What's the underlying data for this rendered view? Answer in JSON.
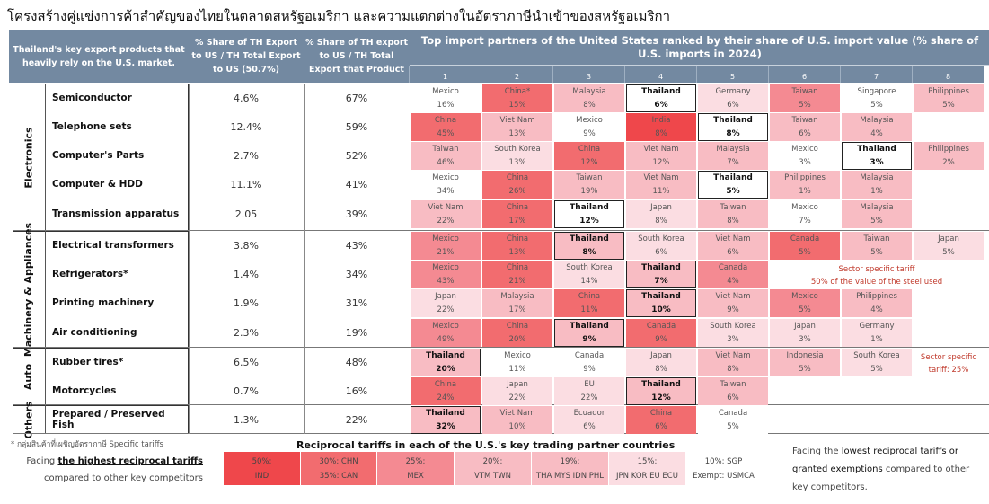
{
  "title": "โครงสร้างคู่แข่งการค้าสำคัญของไทยในตลาดสหรัฐอเมริกา และความแตกต่างในอัตราภาษีนำเข้าของสหรัฐอเมริกา",
  "headers": {
    "product": "Thailand's key export products that heavily rely on the U.S. market.",
    "share_us": "% Share of TH Export to US / TH Total Export to US (50.7%)",
    "share_product": "% Share of TH export to US / TH Total Export that Product",
    "partners": "Top import partners of the United States ranked by their share of U.S. import value (% share of U.S. imports in 2024)",
    "ranks": [
      "1",
      "2",
      "3",
      "4",
      "5",
      "6",
      "7",
      "8"
    ]
  },
  "groups": [
    {
      "label": "Electronics"
    },
    {
      "label": "Machinery & Appliances"
    },
    {
      "label": "Auto"
    },
    {
      "label": "Others"
    }
  ],
  "rows": [
    {
      "product": "Semiconductor",
      "share_us": "4.6%",
      "share_product": "67%",
      "partners": [
        {
          "name": "Mexico",
          "pct": "16%",
          "color": "#ffffff"
        },
        {
          "name": "China*",
          "pct": "15%",
          "color": "#f26c6f"
        },
        {
          "name": "Malaysia",
          "pct": "8%",
          "color": "#f8bcc3"
        },
        {
          "name": "Thailand",
          "pct": "6%",
          "color": "#ffffff"
        },
        {
          "name": "Germany",
          "pct": "6%",
          "color": "#fbdde2"
        },
        {
          "name": "Taiwan",
          "pct": "5%",
          "color": "#f48a92"
        },
        {
          "name": "Singapore",
          "pct": "5%",
          "color": "#ffffff"
        },
        {
          "name": "Philippines",
          "pct": "5%",
          "color": "#f8bcc3"
        }
      ]
    },
    {
      "product": "Telephone sets",
      "share_us": "12.4%",
      "share_product": "59%",
      "partners": [
        {
          "name": "China",
          "pct": "45%",
          "color": "#f26c6f"
        },
        {
          "name": "Viet Nam",
          "pct": "13%",
          "color": "#f8bcc3"
        },
        {
          "name": "Mexico",
          "pct": "9%",
          "color": "#ffffff"
        },
        {
          "name": "India",
          "pct": "8%",
          "color": "#ef474b"
        },
        {
          "name": "Thailand",
          "pct": "8%",
          "color": "#ffffff"
        },
        {
          "name": "Taiwan",
          "pct": "6%",
          "color": "#f8bcc3"
        },
        {
          "name": "Malaysia",
          "pct": "4%",
          "color": "#f8bcc3"
        }
      ]
    },
    {
      "product": "Computer's Parts",
      "share_us": "2.7%",
      "share_product": "52%",
      "partners": [
        {
          "name": "Taiwan",
          "pct": "46%",
          "color": "#f8bcc3"
        },
        {
          "name": "South Korea",
          "pct": "13%",
          "color": "#fbdde2"
        },
        {
          "name": "China",
          "pct": "12%",
          "color": "#f26c6f"
        },
        {
          "name": "Viet Nam",
          "pct": "12%",
          "color": "#f8bcc3"
        },
        {
          "name": "Malaysia",
          "pct": "7%",
          "color": "#f8bcc3"
        },
        {
          "name": "Mexico",
          "pct": "3%",
          "color": "#ffffff"
        },
        {
          "name": "Thailand",
          "pct": "3%",
          "color": "#ffffff"
        },
        {
          "name": "Philippines",
          "pct": "2%",
          "color": "#f8bcc3"
        }
      ]
    },
    {
      "product": "Computer & HDD",
      "share_us": "11.1%",
      "share_product": "41%",
      "partners": [
        {
          "name": "Mexico",
          "pct": "34%",
          "color": "#ffffff"
        },
        {
          "name": "China",
          "pct": "26%",
          "color": "#f26c6f"
        },
        {
          "name": "Taiwan",
          "pct": "19%",
          "color": "#f8bcc3"
        },
        {
          "name": "Viet Nam",
          "pct": "11%",
          "color": "#f8bcc3"
        },
        {
          "name": "Thailand",
          "pct": "5%",
          "color": "#ffffff"
        },
        {
          "name": "Philippines",
          "pct": "1%",
          "color": "#f8bcc3"
        },
        {
          "name": "Malaysia",
          "pct": "1%",
          "color": "#f8bcc3"
        }
      ]
    },
    {
      "product": "Transmission apparatus",
      "share_us": "2.05",
      "share_product": "39%",
      "partners": [
        {
          "name": "Viet Nam",
          "pct": "22%",
          "color": "#f8bcc3"
        },
        {
          "name": "China",
          "pct": "17%",
          "color": "#f26c6f"
        },
        {
          "name": "Thailand",
          "pct": "12%",
          "color": "#ffffff"
        },
        {
          "name": "Japan",
          "pct": "8%",
          "color": "#fbdde2"
        },
        {
          "name": "Taiwan",
          "pct": "8%",
          "color": "#f8bcc3"
        },
        {
          "name": "Mexico",
          "pct": "7%",
          "color": "#ffffff"
        },
        {
          "name": "Malaysia",
          "pct": "5%",
          "color": "#f8bcc3"
        }
      ]
    },
    {
      "product": "Electrical transformers",
      "share_us": "3.8%",
      "share_product": "43%",
      "partners": [
        {
          "name": "Mexico",
          "pct": "21%",
          "color": "#f48a92"
        },
        {
          "name": "China",
          "pct": "13%",
          "color": "#f26c6f"
        },
        {
          "name": "Thailand",
          "pct": "8%",
          "color": "#f8bcc3"
        },
        {
          "name": "South Korea",
          "pct": "6%",
          "color": "#fbdde2"
        },
        {
          "name": "Viet Nam",
          "pct": "6%",
          "color": "#f8bcc3"
        },
        {
          "name": "Canada",
          "pct": "5%",
          "color": "#f26c6f"
        },
        {
          "name": "Taiwan",
          "pct": "5%",
          "color": "#f8bcc3"
        },
        {
          "name": "Japan",
          "pct": "5%",
          "color": "#fbdde2"
        }
      ]
    },
    {
      "product": "Refrigerators*",
      "share_us": "1.4%",
      "share_product": "34%",
      "partners": [
        {
          "name": "Mexico",
          "pct": "43%",
          "color": "#f48a92"
        },
        {
          "name": "China",
          "pct": "21%",
          "color": "#f26c6f"
        },
        {
          "name": "South Korea",
          "pct": "14%",
          "color": "#fbdde2"
        },
        {
          "name": "Thailand",
          "pct": "7%",
          "color": "#f8bcc3"
        },
        {
          "name": "Canada",
          "pct": "4%",
          "color": "#f48a92"
        }
      ],
      "note": "Sector specific tariff\n50% of the value of the steel used"
    },
    {
      "product": "Printing machinery",
      "share_us": "1.9%",
      "share_product": "31%",
      "partners": [
        {
          "name": "Japan",
          "pct": "22%",
          "color": "#fbdde2"
        },
        {
          "name": "Malaysia",
          "pct": "17%",
          "color": "#f8bcc3"
        },
        {
          "name": "China",
          "pct": "11%",
          "color": "#f26c6f"
        },
        {
          "name": "Thailand",
          "pct": "10%",
          "color": "#f8bcc3"
        },
        {
          "name": "Viet Nam",
          "pct": "9%",
          "color": "#f8bcc3"
        },
        {
          "name": "Mexico",
          "pct": "5%",
          "color": "#f48a92"
        },
        {
          "name": "Philippines",
          "pct": "4%",
          "color": "#f8bcc3"
        }
      ]
    },
    {
      "product": "Air conditioning",
      "share_us": "2.3%",
      "share_product": "19%",
      "partners": [
        {
          "name": "Mexico",
          "pct": "49%",
          "color": "#f48a92"
        },
        {
          "name": "China",
          "pct": "20%",
          "color": "#f26c6f"
        },
        {
          "name": "Thailand",
          "pct": "9%",
          "color": "#f8bcc3"
        },
        {
          "name": "Canada",
          "pct": "9%",
          "color": "#f26c6f"
        },
        {
          "name": "South Korea",
          "pct": "3%",
          "color": "#fbdde2"
        },
        {
          "name": "Japan",
          "pct": "3%",
          "color": "#fbdde2"
        },
        {
          "name": "Germany",
          "pct": "1%",
          "color": "#fbdde2"
        }
      ]
    },
    {
      "product": "Rubber tires*",
      "share_us": "6.5%",
      "share_product": "48%",
      "partners": [
        {
          "name": "Thailand",
          "pct": "20%",
          "color": "#f8bcc3"
        },
        {
          "name": "Mexico",
          "pct": "11%",
          "color": "#ffffff"
        },
        {
          "name": "Canada",
          "pct": "9%",
          "color": "#ffffff"
        },
        {
          "name": "Japan",
          "pct": "8%",
          "color": "#fbdde2"
        },
        {
          "name": "Viet Nam",
          "pct": "8%",
          "color": "#f8bcc3"
        },
        {
          "name": "Indonesia",
          "pct": "5%",
          "color": "#f8bcc3"
        },
        {
          "name": "South Korea",
          "pct": "5%",
          "color": "#fbdde2"
        }
      ],
      "note": "Sector specific\ntariff: 25%"
    },
    {
      "product": "Motorcycles",
      "share_us": "0.7%",
      "share_product": "16%",
      "partners": [
        {
          "name": "China",
          "pct": "24%",
          "color": "#f26c6f"
        },
        {
          "name": "Japan",
          "pct": "22%",
          "color": "#fbdde2"
        },
        {
          "name": "EU",
          "pct": "22%",
          "color": "#fbdde2"
        },
        {
          "name": "Thailand",
          "pct": "12%",
          "color": "#f8bcc3"
        },
        {
          "name": "Taiwan",
          "pct": "6%",
          "color": "#f8bcc3"
        }
      ]
    },
    {
      "product": "Prepared / Preserved Fish",
      "share_us": "1.3%",
      "share_product": "22%",
      "partners": [
        {
          "name": "Thailand",
          "pct": "32%",
          "color": "#f8bcc3"
        },
        {
          "name": "Viet Nam",
          "pct": "10%",
          "color": "#f8bcc3"
        },
        {
          "name": "Ecuador",
          "pct": "6%",
          "color": "#fbdde2"
        },
        {
          "name": "China",
          "pct": "6%",
          "color": "#f26c6f"
        },
        {
          "name": "Canada",
          "pct": "5%",
          "color": "#ffffff"
        }
      ]
    }
  ],
  "footnote": "* กลุ่มสินค้าที่เผชิญอัตราภาษี Specific tariffs",
  "legend": {
    "title": "Reciprocal tariffs in each of the U.S.'s key trading partner countries",
    "items": [
      {
        "rate": "50%:",
        "countries": "IND",
        "color": "#ef474b"
      },
      {
        "rate": "30%: CHN",
        "countries": "35%: CAN",
        "color": "#f26c6f"
      },
      {
        "rate": "25%:",
        "countries": "MEX",
        "color": "#f48a92"
      },
      {
        "rate": "20%:",
        "countries": "VTM TWN",
        "color": "#f8bcc3"
      },
      {
        "rate": "19%:",
        "countries": "THA MYS IDN PHL",
        "color": "#f8bcc3"
      },
      {
        "rate": "15%:",
        "countries": "JPN KOR EU ECU",
        "color": "#fbdde2"
      },
      {
        "rate": "10%: SGP",
        "countries": "Exempt: USMCA",
        "color": "#ffffff"
      }
    ]
  },
  "left_note": {
    "pre": "Facing ",
    "bold": "the highest reciprocal tariffs",
    "post": "compared to other key competitors"
  },
  "right_note": {
    "pre": "Facing the ",
    "bold1": "lowest reciprocal tariffs or",
    "bold2": "granted exemptions ",
    "post": "compared to other key competitors."
  }
}
